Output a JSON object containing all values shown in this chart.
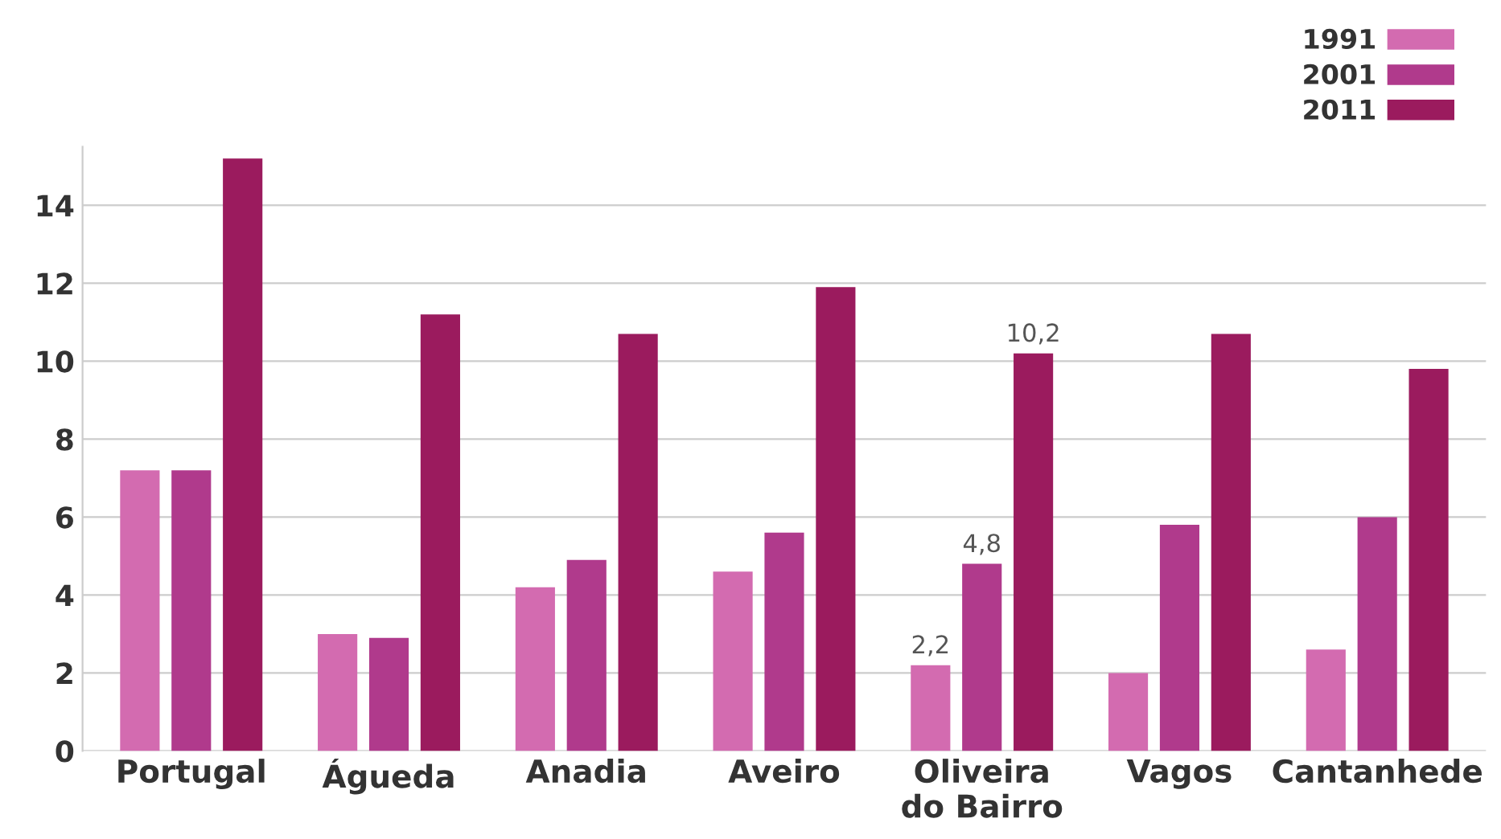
{
  "chart_data": {
    "type": "bar",
    "categories": [
      "Portugal",
      "Águeda",
      "Anadia",
      "Aveiro",
      "Oliveira\ndo Bairro",
      "Vagos",
      "Cantanhede"
    ],
    "series": [
      {
        "name": "1991",
        "color": "#d36bb0",
        "values": [
          7.2,
          3.0,
          4.2,
          4.6,
          2.2,
          2.0,
          2.6
        ],
        "value_labels": [
          null,
          null,
          null,
          null,
          "2,2",
          null,
          null
        ]
      },
      {
        "name": "2001",
        "color": "#b03a8c",
        "values": [
          7.2,
          2.9,
          4.9,
          5.6,
          4.8,
          5.8,
          6.0
        ],
        "value_labels": [
          null,
          null,
          null,
          null,
          "4,8",
          null,
          null
        ]
      },
      {
        "name": "2011",
        "color": "#9b1b5e",
        "values": [
          15.2,
          11.2,
          10.7,
          11.9,
          10.2,
          10.7,
          9.8
        ],
        "value_labels": [
          null,
          null,
          null,
          null,
          "10,2",
          null,
          null
        ]
      }
    ],
    "ylim": [
      0,
      15.5
    ],
    "yticks": [
      0,
      2,
      4,
      6,
      8,
      10,
      12,
      14
    ],
    "grid": "y",
    "legend": "top right"
  }
}
